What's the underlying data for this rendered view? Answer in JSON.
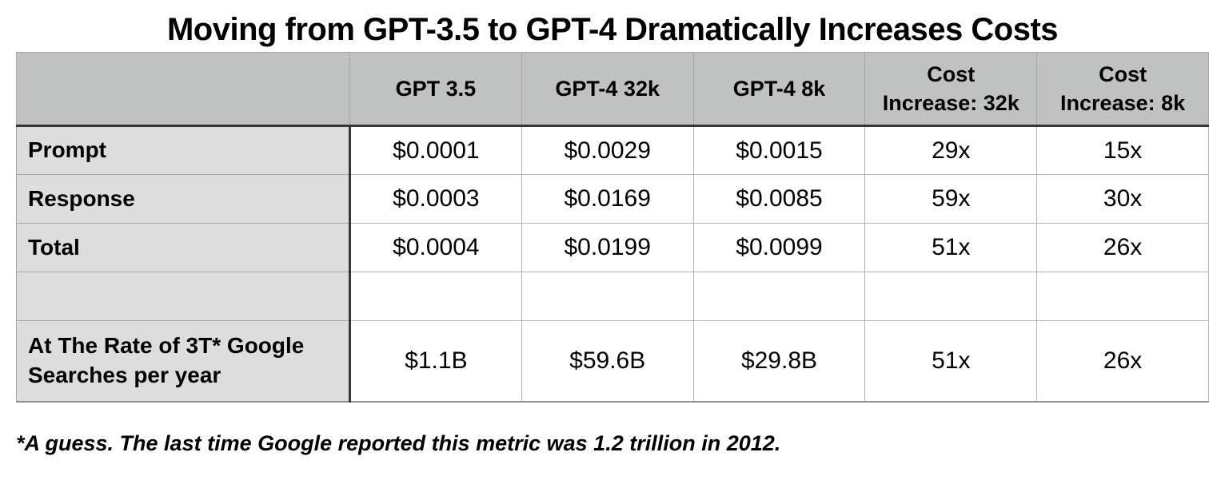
{
  "title": "Moving from GPT-3.5 to GPT-4 Dramatically Increases Costs",
  "footnote": "*A guess. The last time Google reported this metric was 1.2 trillion in 2012.",
  "colors": {
    "header_bg": "#c0c2c1",
    "label_bg": "#dcdddc",
    "heavy_border": "#363636",
    "light_border": "#a8a8a8",
    "outer_border": "#9b9b9b",
    "text": "#000000",
    "page_bg": "#ffffff"
  },
  "chart_data": {
    "type": "table",
    "title": "Moving from GPT-3.5 to GPT-4 Dramatically Increases Costs",
    "columns": [
      "",
      "GPT 3.5",
      "GPT-4 32k",
      "GPT-4 8k",
      "Cost\nIncrease: 32k",
      "Cost\nIncrease: 8k"
    ],
    "rows": [
      {
        "label": "Prompt",
        "values": [
          "$0.0001",
          "$0.0029",
          "$0.0015",
          "29x",
          "15x"
        ]
      },
      {
        "label": "Response",
        "values": [
          "$0.0003",
          "$0.0169",
          "$0.0085",
          "59x",
          "30x"
        ]
      },
      {
        "label": "Total",
        "values": [
          "$0.0004",
          "$0.0199",
          "$0.0099",
          "51x",
          "26x"
        ]
      },
      {
        "label": "",
        "values": [
          "",
          "",
          "",
          "",
          ""
        ]
      },
      {
        "label": "At The Rate of 3T* Google Searches per year",
        "values": [
          "$1.1B",
          "$59.6B",
          "$29.8B",
          "51x",
          "26x"
        ]
      }
    ],
    "footnote": "*A guess. The last time Google reported this metric was 1.2 trillion in 2012."
  }
}
